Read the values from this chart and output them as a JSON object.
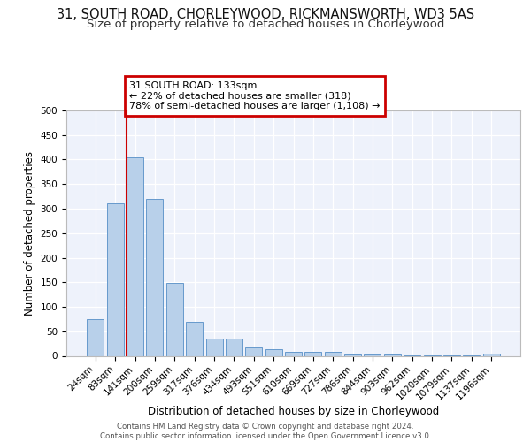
{
  "title": "31, SOUTH ROAD, CHORLEYWOOD, RICKMANSWORTH, WD3 5AS",
  "subtitle": "Size of property relative to detached houses in Chorleywood",
  "xlabel": "Distribution of detached houses by size in Chorleywood",
  "ylabel": "Number of detached properties",
  "categories": [
    "24sqm",
    "83sqm",
    "141sqm",
    "200sqm",
    "259sqm",
    "317sqm",
    "376sqm",
    "434sqm",
    "493sqm",
    "551sqm",
    "610sqm",
    "669sqm",
    "727sqm",
    "786sqm",
    "844sqm",
    "903sqm",
    "962sqm",
    "1020sqm",
    "1079sqm",
    "1137sqm",
    "1196sqm"
  ],
  "values": [
    75,
    310,
    405,
    320,
    148,
    70,
    35,
    35,
    18,
    13,
    8,
    8,
    8,
    3,
    3,
    3,
    1,
    1,
    1,
    1,
    4
  ],
  "bar_color": "#b8d0ea",
  "bar_edge_color": "#6699cc",
  "red_line_index": 2,
  "annotation_title": "31 SOUTH ROAD: 133sqm",
  "annotation_line1": "← 22% of detached houses are smaller (318)",
  "annotation_line2": "78% of semi-detached houses are larger (1,108) →",
  "annotation_box_color": "#cc0000",
  "ylim": [
    0,
    500
  ],
  "yticks": [
    0,
    50,
    100,
    150,
    200,
    250,
    300,
    350,
    400,
    450,
    500
  ],
  "bg_color": "#eef2fb",
  "grid_color": "#ffffff",
  "footer_line1": "Contains HM Land Registry data © Crown copyright and database right 2024.",
  "footer_line2": "Contains public sector information licensed under the Open Government Licence v3.0.",
  "title_fontsize": 10.5,
  "subtitle_fontsize": 9.5,
  "tick_fontsize": 7.5,
  "label_fontsize": 8.5,
  "annot_fontsize": 8
}
